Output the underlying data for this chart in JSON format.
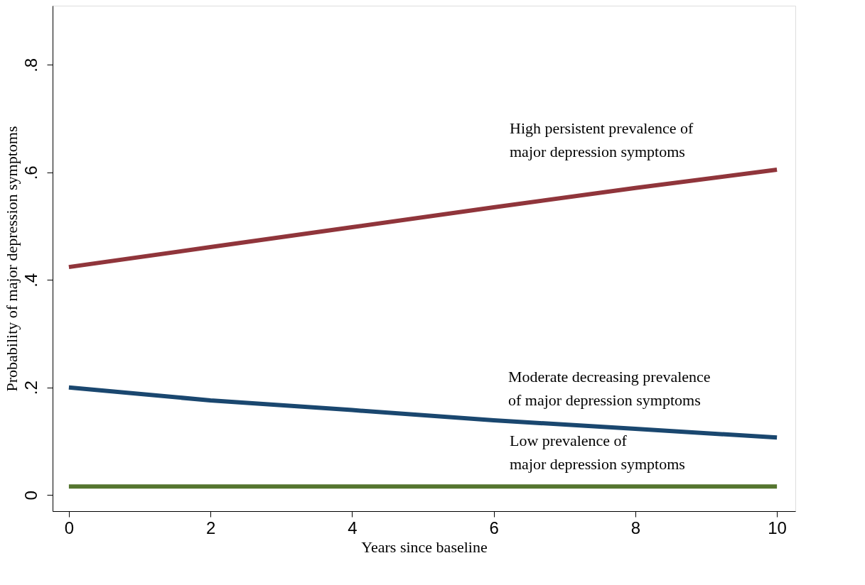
{
  "chart_data": {
    "type": "line",
    "xlabel": "Years since baseline",
    "ylabel": "Probability of major depression symptoms",
    "x": [
      0,
      2,
      4,
      6,
      8,
      10
    ],
    "series": [
      {
        "color": "#90353b",
        "values": [
          0.424,
          0.461,
          0.498,
          0.535,
          0.571,
          0.605
        ]
      },
      {
        "color": "#1a476f",
        "values": [
          0.2,
          0.176,
          0.158,
          0.139,
          0.123,
          0.107
        ]
      },
      {
        "color": "#55752f",
        "values": [
          0.016,
          0.016,
          0.016,
          0.016,
          0.016,
          0.016
        ]
      }
    ],
    "xlim": [
      -0.23,
      10.26
    ],
    "ylim": [
      -0.03,
      0.91
    ],
    "xticks": [
      0,
      2,
      4,
      6,
      8,
      10
    ],
    "yticks": [
      0,
      {
        "value": 0.2,
        "label": ".2"
      },
      {
        "value": 0.4,
        "label": ".4"
      },
      {
        "value": 0.6,
        "label": ".6"
      },
      {
        "value": 0.8,
        "label": ".8"
      }
    ],
    "annotations": [
      "High persistent prevalence of\nmajor depression symptoms",
      "Moderate decreasing prevalence\nof major depression symptoms",
      "Low prevalence of\nmajor depression symptoms"
    ],
    "grid": false,
    "legend": false,
    "marker": "none",
    "line_style": "solid"
  }
}
